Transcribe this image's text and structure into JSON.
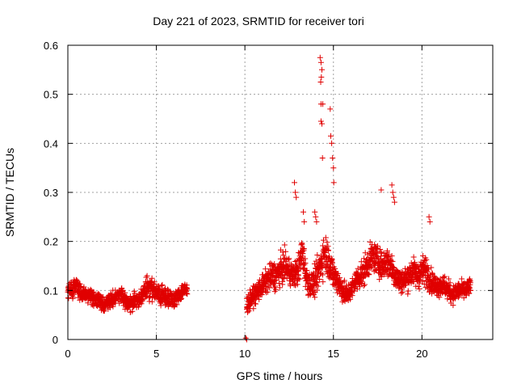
{
  "chart_data": {
    "type": "scatter",
    "title": "Day 221 of 2023, SRMTID for receiver tori",
    "xlabel": "GPS time / hours",
    "ylabel": "SRMTID / TECUs",
    "xlim": [
      0,
      24
    ],
    "ylim": [
      0,
      0.6
    ],
    "xticks": [
      0,
      5,
      10,
      15,
      20
    ],
    "yticks": [
      0,
      0.1,
      0.2,
      0.3,
      0.4,
      0.5,
      0.6
    ],
    "ytick_labels": [
      "0",
      "0.1",
      "0.2",
      "0.3",
      "0.4",
      "0.5",
      "0.6"
    ],
    "grid": true,
    "marker": "+",
    "series_color": "#e00000",
    "segments": [
      {
        "x": [
          0.0,
          0.25,
          0.5,
          0.75,
          1.0,
          1.25,
          1.5,
          1.75,
          2.0,
          2.25,
          2.5,
          2.75,
          3.0,
          3.25,
          3.5,
          3.75,
          4.0,
          4.25,
          4.5,
          4.75,
          5.0,
          5.25,
          5.5,
          5.75,
          6.0,
          6.25,
          6.5,
          6.75
        ],
        "y": [
          0.1,
          0.1,
          0.11,
          0.09,
          0.09,
          0.09,
          0.08,
          0.08,
          0.07,
          0.08,
          0.08,
          0.09,
          0.09,
          0.08,
          0.07,
          0.08,
          0.08,
          0.09,
          0.11,
          0.1,
          0.1,
          0.09,
          0.09,
          0.08,
          0.08,
          0.09,
          0.1,
          0.1
        ],
        "spread": [
          0.03,
          0.03,
          0.03,
          0.03,
          0.025,
          0.025,
          0.025,
          0.025,
          0.025,
          0.025,
          0.03,
          0.03,
          0.03,
          0.03,
          0.03,
          0.025,
          0.025,
          0.03,
          0.04,
          0.035,
          0.03,
          0.03,
          0.03,
          0.03,
          0.025,
          0.025,
          0.03,
          0.03
        ]
      },
      {
        "x": [
          10.1,
          10.3,
          10.5,
          10.75,
          11.0,
          11.25,
          11.5,
          11.75,
          12.0,
          12.25,
          12.5,
          12.75,
          13.0,
          13.25,
          13.5,
          13.75,
          14.0,
          14.25,
          14.5,
          14.75,
          15.0,
          15.25,
          15.5,
          15.75,
          16.0,
          16.25,
          16.5,
          16.75,
          17.0,
          17.25,
          17.5,
          17.75,
          18.0,
          18.25,
          18.5,
          18.75,
          19.0,
          19.25,
          19.5,
          19.75,
          20.0,
          20.25,
          20.5,
          20.75,
          21.0,
          21.25,
          21.5,
          21.75,
          22.0,
          22.25,
          22.5,
          22.75
        ],
        "y": [
          0.07,
          0.08,
          0.09,
          0.1,
          0.11,
          0.12,
          0.13,
          0.13,
          0.14,
          0.15,
          0.14,
          0.13,
          0.14,
          0.18,
          0.12,
          0.11,
          0.12,
          0.15,
          0.18,
          0.16,
          0.13,
          0.12,
          0.1,
          0.09,
          0.1,
          0.12,
          0.13,
          0.14,
          0.16,
          0.17,
          0.16,
          0.15,
          0.16,
          0.15,
          0.13,
          0.12,
          0.12,
          0.13,
          0.14,
          0.13,
          0.14,
          0.14,
          0.12,
          0.11,
          0.11,
          0.11,
          0.1,
          0.09,
          0.1,
          0.1,
          0.1,
          0.11
        ],
        "spread": [
          0.03,
          0.03,
          0.03,
          0.035,
          0.035,
          0.04,
          0.045,
          0.05,
          0.05,
          0.05,
          0.045,
          0.04,
          0.05,
          0.06,
          0.04,
          0.04,
          0.05,
          0.06,
          0.07,
          0.06,
          0.05,
          0.045,
          0.04,
          0.035,
          0.035,
          0.04,
          0.045,
          0.05,
          0.05,
          0.05,
          0.045,
          0.045,
          0.05,
          0.05,
          0.045,
          0.04,
          0.04,
          0.045,
          0.045,
          0.045,
          0.05,
          0.05,
          0.04,
          0.035,
          0.035,
          0.035,
          0.035,
          0.03,
          0.03,
          0.03,
          0.03,
          0.03
        ]
      }
    ],
    "outliers": {
      "x": [
        10.05,
        10.1,
        12.8,
        12.85,
        12.9,
        13.3,
        13.35,
        13.95,
        14.0,
        14.05,
        14.25,
        14.3,
        14.35,
        14.32,
        14.28,
        14.4,
        14.3,
        14.35,
        14.3,
        14.38,
        14.82,
        14.85,
        14.9,
        14.95,
        15.0,
        15.02,
        18.3,
        18.35,
        18.4,
        18.45,
        20.4,
        20.45,
        17.7
      ],
      "y": [
        0.003,
        0.0,
        0.32,
        0.3,
        0.29,
        0.26,
        0.24,
        0.26,
        0.25,
        0.24,
        0.575,
        0.565,
        0.55,
        0.535,
        0.525,
        0.48,
        0.48,
        0.44,
        0.445,
        0.37,
        0.47,
        0.415,
        0.4,
        0.37,
        0.35,
        0.32,
        0.315,
        0.3,
        0.29,
        0.28,
        0.25,
        0.24,
        0.305
      ]
    }
  }
}
